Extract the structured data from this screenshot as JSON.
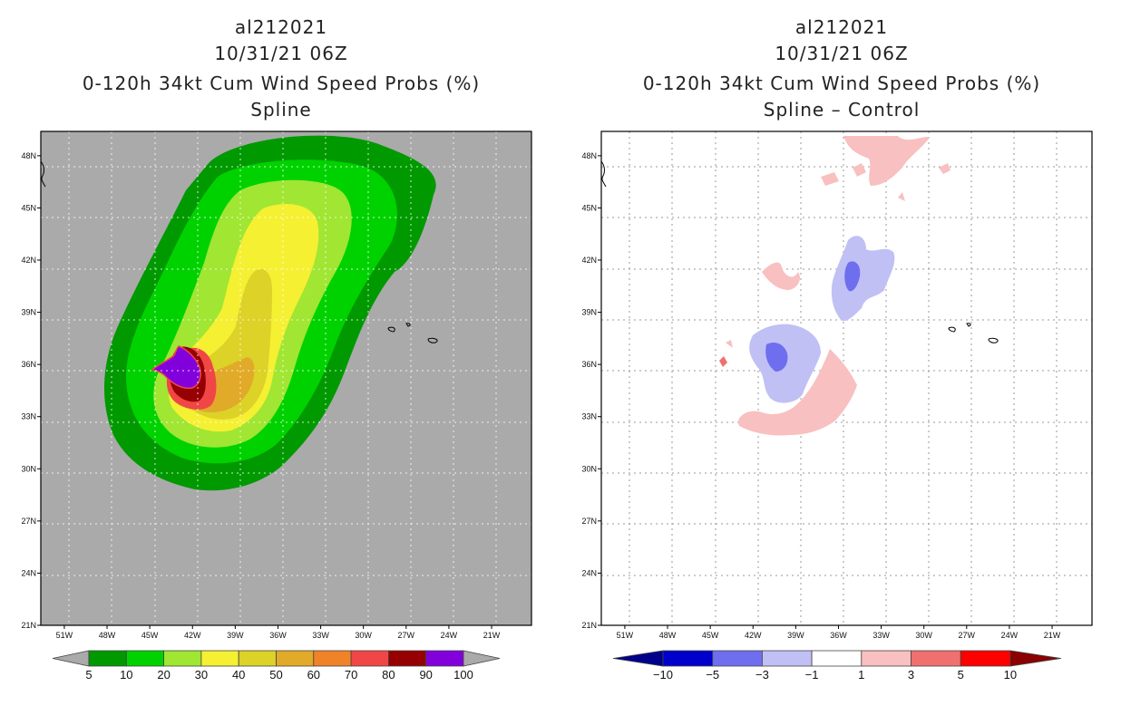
{
  "chart_data": [
    {
      "type": "heatmap",
      "storm_id": "al212021",
      "datetime": "10/31/21 06Z",
      "title": "0-120h 34kt Cum Wind Speed Probs (%)",
      "subtitle": "Spline",
      "units": "%",
      "x_ticks": [
        "51W",
        "48W",
        "45W",
        "42W",
        "39W",
        "36W",
        "33W",
        "30W",
        "27W",
        "24W",
        "21W"
      ],
      "y_ticks": [
        "21N",
        "24N",
        "27N",
        "30N",
        "33N",
        "36N",
        "39N",
        "42N",
        "45N",
        "48N"
      ],
      "colorbar": {
        "levels": [
          "5",
          "10",
          "20",
          "30",
          "40",
          "50",
          "60",
          "70",
          "80",
          "90",
          "100"
        ],
        "colors": [
          "#009900",
          "#00d200",
          "#a0e632",
          "#f5f032",
          "#dcd228",
          "#e1aa28",
          "#f08228",
          "#f04646",
          "#960000",
          "#8200dc"
        ],
        "extend_color": "#aaaaaa"
      },
      "contours": [
        {
          "level": 5,
          "color": "#009900"
        },
        {
          "level": 10,
          "color": "#00d200"
        },
        {
          "level": 20,
          "color": "#a0e632"
        },
        {
          "level": 30,
          "color": "#f5f032"
        },
        {
          "level": 40,
          "color": "#dcd228"
        },
        {
          "level": 50,
          "color": "#e1aa28"
        },
        {
          "level": 70,
          "color": "#f04646"
        },
        {
          "level": 80,
          "color": "#960000"
        },
        {
          "level": 90,
          "color": "#8200dc"
        }
      ],
      "background_color": "#aaaaaa",
      "grid": true
    },
    {
      "type": "heatmap",
      "storm_id": "al212021",
      "datetime": "10/31/21 06Z",
      "title": "0-120h 34kt Cum Wind Speed Probs (%)",
      "subtitle": "Spline – Control",
      "units": "%",
      "x_ticks": [
        "51W",
        "48W",
        "45W",
        "42W",
        "39W",
        "36W",
        "33W",
        "30W",
        "27W",
        "24W",
        "21W"
      ],
      "y_ticks": [
        "21N",
        "24N",
        "27N",
        "30N",
        "33N",
        "36N",
        "39N",
        "42N",
        "45N",
        "48N"
      ],
      "colorbar": {
        "levels": [
          "−10",
          "−5",
          "−3",
          "−1",
          "1",
          "3",
          "5",
          "10"
        ],
        "colors": [
          "#0000cd",
          "#6e6eee",
          "#c0c0f5",
          "#ffffff",
          "#f8c0c0",
          "#f07070",
          "#ff0000"
        ],
        "extend_low_color": "#00008b",
        "extend_high_color": "#8b0000"
      },
      "difference_regions": [
        {
          "sign": "negative",
          "magnitude": "1-3"
        },
        {
          "sign": "negative",
          "magnitude": "3-5"
        },
        {
          "sign": "positive",
          "magnitude": "1-3"
        },
        {
          "sign": "positive",
          "magnitude": "3-5"
        }
      ],
      "background_color": "#ffffff",
      "grid": true
    }
  ]
}
